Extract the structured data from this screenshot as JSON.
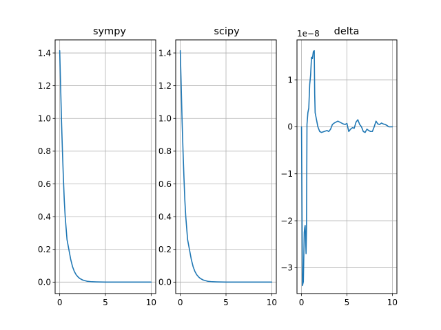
{
  "chart_data": [
    {
      "type": "line",
      "title": "sympy",
      "xlim": [
        -0.5,
        10.5
      ],
      "ylim": [
        -0.07,
        1.48
      ],
      "xticks": [
        0,
        5,
        10
      ],
      "xtick_labels": [
        "0",
        "5",
        "10"
      ],
      "yticks": [
        0.0,
        0.2,
        0.4,
        0.6,
        0.8,
        1.0,
        1.2,
        1.4
      ],
      "ytick_labels": [
        "0.0",
        "0.2",
        "0.4",
        "0.6",
        "0.8",
        "1.0",
        "1.2",
        "1.4"
      ],
      "grid": true,
      "color": "#1f77b4",
      "series": [
        {
          "x": [
            0.0,
            0.1,
            0.2,
            0.3,
            0.4,
            0.5,
            0.6,
            0.8,
            1.0,
            1.2,
            1.4,
            1.6,
            1.8,
            2.0,
            2.2,
            2.5,
            3.0,
            3.5,
            4.0,
            5.0,
            6.0,
            7.0,
            8.0,
            9.0,
            10.0
          ],
          "y": [
            1.414,
            1.2,
            0.98,
            0.8,
            0.64,
            0.5,
            0.4,
            0.26,
            0.2,
            0.14,
            0.095,
            0.065,
            0.045,
            0.032,
            0.022,
            0.013,
            0.005,
            0.002,
            0.001,
            0.0,
            0.0,
            0.0,
            0.0,
            0.0,
            0.0
          ]
        }
      ]
    },
    {
      "type": "line",
      "title": "scipy",
      "xlim": [
        -0.5,
        10.5
      ],
      "ylim": [
        -0.07,
        1.48
      ],
      "xticks": [
        0,
        5,
        10
      ],
      "xtick_labels": [
        "0",
        "5",
        "10"
      ],
      "yticks": [
        0.0,
        0.2,
        0.4,
        0.6,
        0.8,
        1.0,
        1.2,
        1.4
      ],
      "ytick_labels": [
        "0.0",
        "0.2",
        "0.4",
        "0.6",
        "0.8",
        "1.0",
        "1.2",
        "1.4"
      ],
      "grid": true,
      "color": "#1f77b4",
      "series": [
        {
          "x": [
            0.0,
            0.1,
            0.2,
            0.3,
            0.4,
            0.5,
            0.6,
            0.8,
            1.0,
            1.2,
            1.4,
            1.6,
            1.8,
            2.0,
            2.2,
            2.5,
            3.0,
            3.5,
            4.0,
            5.0,
            6.0,
            7.0,
            8.0,
            9.0,
            10.0
          ],
          "y": [
            1.414,
            1.2,
            0.98,
            0.8,
            0.64,
            0.5,
            0.4,
            0.26,
            0.2,
            0.14,
            0.095,
            0.065,
            0.045,
            0.032,
            0.022,
            0.013,
            0.005,
            0.002,
            0.001,
            0.0,
            0.0,
            0.0,
            0.0,
            0.0,
            0.0
          ]
        }
      ]
    },
    {
      "type": "line",
      "title": "delta",
      "offset_text": "1e−8",
      "xlim": [
        -0.5,
        10.5
      ],
      "ylim": [
        -3.55,
        1.85
      ],
      "xticks": [
        0,
        5,
        10
      ],
      "xtick_labels": [
        "0",
        "5",
        "10"
      ],
      "yticks": [
        -3,
        -2,
        -1,
        0,
        1
      ],
      "ytick_labels": [
        "−3",
        "−2",
        "−1",
        "0",
        "1"
      ],
      "grid": true,
      "color": "#1f77b4",
      "series": [
        {
          "x": [
            0.0,
            0.1,
            0.2,
            0.3,
            0.35,
            0.4,
            0.5,
            0.55,
            0.6,
            0.7,
            0.8,
            0.9,
            1.0,
            1.1,
            1.2,
            1.3,
            1.4,
            1.45,
            1.5,
            1.6,
            1.8,
            2.0,
            2.2,
            2.5,
            2.8,
            3.0,
            3.2,
            3.4,
            3.6,
            3.8,
            4.0,
            4.2,
            4.4,
            4.6,
            4.8,
            5.0,
            5.2,
            5.4,
            5.6,
            5.8,
            6.0,
            6.2,
            6.4,
            6.6,
            6.8,
            7.0,
            7.2,
            7.4,
            7.6,
            7.8,
            8.0,
            8.2,
            8.4,
            8.6,
            8.8,
            9.0,
            9.2,
            9.4,
            9.6,
            9.8,
            10.0
          ],
          "y": [
            0.0,
            -3.38,
            -3.3,
            -2.25,
            -2.15,
            -2.1,
            -2.7,
            -2.15,
            0.05,
            0.3,
            0.4,
            0.9,
            1.1,
            1.48,
            1.45,
            1.6,
            1.62,
            0.7,
            0.3,
            0.2,
            0.0,
            -0.1,
            -0.12,
            -0.1,
            -0.08,
            -0.1,
            -0.05,
            0.05,
            0.08,
            0.1,
            0.12,
            0.1,
            0.08,
            0.06,
            0.05,
            0.07,
            -0.1,
            -0.05,
            -0.02,
            -0.03,
            0.1,
            0.15,
            0.05,
            0.0,
            -0.1,
            -0.12,
            -0.05,
            -0.08,
            -0.1,
            -0.1,
            0.0,
            0.12,
            0.06,
            0.05,
            0.08,
            0.06,
            0.05,
            0.03,
            0.0,
            0.0,
            0.0
          ]
        }
      ]
    }
  ]
}
